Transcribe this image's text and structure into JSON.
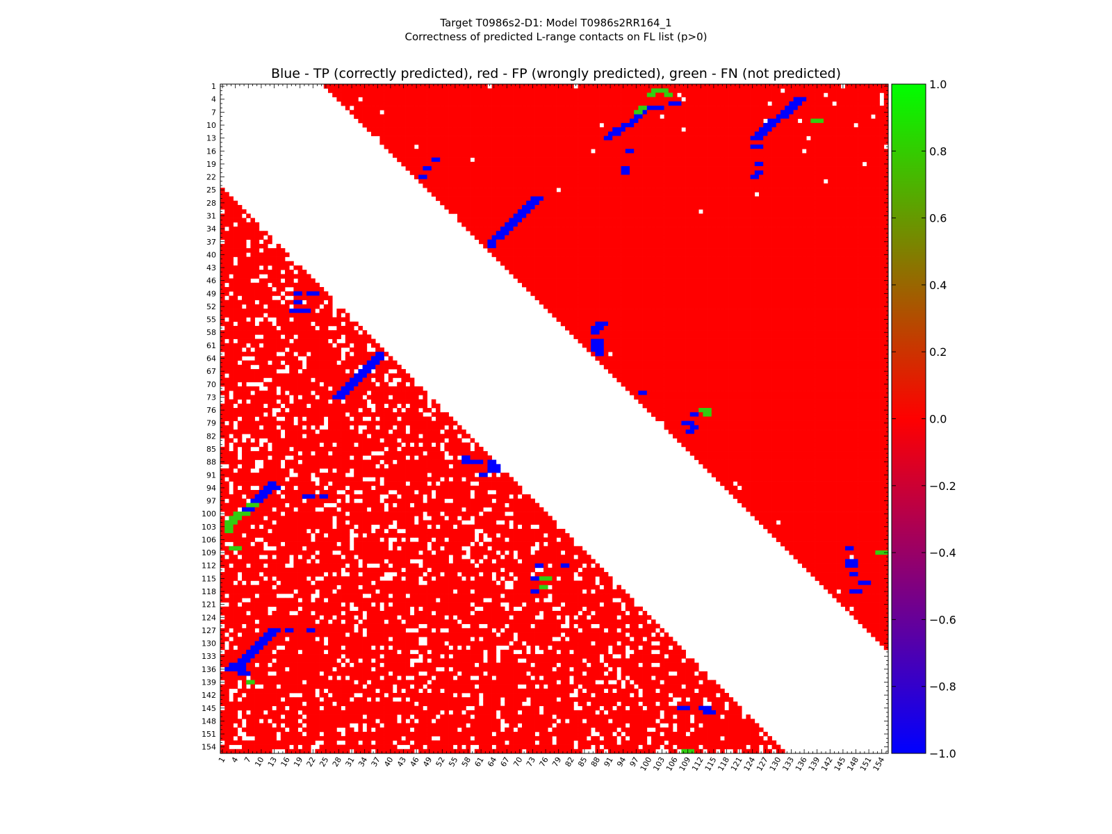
{
  "chart_data": {
    "type": "heatmap",
    "title_line1": "Target T0986s2-D1: Model T0986s2RR164_1",
    "title_line2": "Correctness of predicted L-range contacts on FL list (p>0)",
    "subtitle": "Blue - TP (correctly predicted), red - FP (wrongly predicted), green - FN (not predicted)",
    "n_residues": 155,
    "x_tick_labels": [
      "1",
      "4",
      "7",
      "10",
      "13",
      "16",
      "19",
      "22",
      "25",
      "28",
      "31",
      "34",
      "37",
      "40",
      "43",
      "46",
      "49",
      "52",
      "55",
      "58",
      "61",
      "64",
      "67",
      "70",
      "73",
      "76",
      "79",
      "82",
      "85",
      "88",
      "91",
      "94",
      "97",
      "100",
      "103",
      "106",
      "109",
      "112",
      "115",
      "118",
      "121",
      "124",
      "127",
      "130",
      "133",
      "136",
      "139",
      "142",
      "145",
      "148",
      "151",
      "154"
    ],
    "y_tick_labels": [
      "1",
      "4",
      "7",
      "10",
      "13",
      "16",
      "19",
      "22",
      "25",
      "28",
      "31",
      "34",
      "37",
      "40",
      "43",
      "46",
      "49",
      "52",
      "55",
      "58",
      "61",
      "64",
      "67",
      "70",
      "73",
      "76",
      "79",
      "82",
      "85",
      "88",
      "91",
      "94",
      "97",
      "100",
      "103",
      "106",
      "109",
      "112",
      "115",
      "118",
      "121",
      "124",
      "127",
      "130",
      "133",
      "136",
      "139",
      "142",
      "145",
      "148",
      "151",
      "154"
    ],
    "colorbar": {
      "min": -1.0,
      "max": 1.0,
      "tick_labels": [
        "1.0",
        "0.8",
        "0.6",
        "0.4",
        "0.2",
        "0.0",
        "−0.2",
        "−0.4",
        "−0.6",
        "−0.8",
        "−1.0"
      ],
      "colors": [
        "#0000ff",
        "#ff0000",
        "#00ff00"
      ]
    },
    "colors": {
      "tp": "#0000ff",
      "fp": "#ff0000",
      "fn": "#33cc11"
    },
    "tp_segments": [
      [
        5,
        105,
        107
      ],
      [
        6,
        99,
        100
      ],
      [
        6,
        101,
        103
      ],
      [
        7,
        98,
        99
      ],
      [
        8,
        97,
        98
      ],
      [
        9,
        96,
        97
      ],
      [
        10,
        94,
        96
      ],
      [
        11,
        92,
        94
      ],
      [
        12,
        91,
        93
      ],
      [
        13,
        90,
        91
      ],
      [
        27,
        73,
        75
      ],
      [
        28,
        72,
        74
      ],
      [
        29,
        71,
        73
      ],
      [
        30,
        70,
        72
      ],
      [
        31,
        69,
        71
      ],
      [
        32,
        68,
        70
      ],
      [
        33,
        67,
        69
      ],
      [
        34,
        66,
        68
      ],
      [
        35,
        65,
        67
      ],
      [
        36,
        64,
        66
      ],
      [
        37,
        63,
        64
      ],
      [
        38,
        63,
        64
      ],
      [
        20,
        48,
        49
      ],
      [
        22,
        47,
        48
      ],
      [
        18,
        50,
        51
      ],
      [
        16,
        95,
        96
      ],
      [
        20,
        94,
        95
      ],
      [
        21,
        94,
        95
      ],
      [
        4,
        134,
        136
      ],
      [
        5,
        133,
        135
      ],
      [
        6,
        132,
        134
      ],
      [
        7,
        131,
        133
      ],
      [
        8,
        130,
        132
      ],
      [
        9,
        128,
        130
      ],
      [
        10,
        127,
        129
      ],
      [
        11,
        126,
        128
      ],
      [
        12,
        125,
        127
      ],
      [
        13,
        124,
        126
      ],
      [
        15,
        124,
        126
      ],
      [
        19,
        125,
        126
      ],
      [
        21,
        125,
        126
      ],
      [
        22,
        124,
        125
      ],
      [
        56,
        88,
        90
      ],
      [
        57,
        87,
        89
      ],
      [
        58,
        87,
        88
      ],
      [
        60,
        87,
        89
      ],
      [
        61,
        87,
        89
      ],
      [
        62,
        87,
        89
      ],
      [
        63,
        88,
        89
      ],
      [
        72,
        98,
        99
      ],
      [
        77,
        110,
        111
      ],
      [
        79,
        108,
        110
      ],
      [
        80,
        110,
        111
      ],
      [
        81,
        109,
        110
      ],
      [
        63,
        37,
        38
      ],
      [
        64,
        36,
        38
      ],
      [
        65,
        35,
        37
      ],
      [
        66,
        34,
        36
      ],
      [
        67,
        33,
        35
      ],
      [
        68,
        32,
        34
      ],
      [
        69,
        31,
        33
      ],
      [
        70,
        30,
        32
      ],
      [
        71,
        29,
        31
      ],
      [
        72,
        28,
        30
      ],
      [
        73,
        27,
        29
      ],
      [
        49,
        18,
        19
      ],
      [
        49,
        21,
        23
      ],
      [
        51,
        18,
        19
      ],
      [
        53,
        17,
        19
      ],
      [
        53,
        20,
        21
      ],
      [
        87,
        57,
        58
      ],
      [
        88,
        57,
        61
      ],
      [
        88,
        63,
        65
      ],
      [
        89,
        63,
        65
      ],
      [
        90,
        63,
        65
      ],
      [
        91,
        61,
        62
      ],
      [
        93,
        12,
        13
      ],
      [
        94,
        11,
        14
      ],
      [
        95,
        10,
        12
      ],
      [
        96,
        9,
        11
      ],
      [
        97,
        8,
        10
      ],
      [
        98,
        7,
        9
      ],
      [
        99,
        6,
        8
      ],
      [
        96,
        20,
        22
      ],
      [
        96,
        24,
        25
      ],
      [
        127,
        12,
        14
      ],
      [
        128,
        11,
        13
      ],
      [
        129,
        10,
        12
      ],
      [
        130,
        9,
        11
      ],
      [
        131,
        8,
        10
      ],
      [
        132,
        7,
        9
      ],
      [
        133,
        6,
        8
      ],
      [
        134,
        5,
        7
      ],
      [
        135,
        3,
        6
      ],
      [
        136,
        2,
        6
      ],
      [
        137,
        5,
        7
      ],
      [
        127,
        16,
        17
      ],
      [
        127,
        21,
        22
      ],
      [
        112,
        74,
        75
      ],
      [
        112,
        80,
        81
      ],
      [
        115,
        73,
        74
      ],
      [
        118,
        73,
        74
      ],
      [
        145,
        107,
        109
      ],
      [
        145,
        112,
        114
      ],
      [
        146,
        113,
        115
      ],
      [
        108,
        146,
        147
      ],
      [
        111,
        146,
        148
      ],
      [
        112,
        146,
        148
      ],
      [
        114,
        147,
        148
      ],
      [
        116,
        149,
        151
      ],
      [
        118,
        147,
        149
      ]
    ],
    "fn_segments": [
      [
        2,
        101,
        104
      ],
      [
        3,
        100,
        101
      ],
      [
        3,
        104,
        105
      ],
      [
        6,
        98,
        99
      ],
      [
        7,
        97,
        98
      ],
      [
        9,
        138,
        140
      ],
      [
        76,
        112,
        114
      ],
      [
        77,
        113,
        114
      ],
      [
        98,
        7,
        9
      ],
      [
        100,
        4,
        7
      ],
      [
        101,
        3,
        5
      ],
      [
        102,
        2,
        4
      ],
      [
        103,
        2,
        3
      ],
      [
        104,
        2,
        3
      ],
      [
        108,
        3,
        5
      ],
      [
        115,
        75,
        77
      ],
      [
        117,
        75,
        76
      ],
      [
        109,
        153,
        155
      ],
      [
        139,
        7,
        8
      ],
      [
        155,
        108,
        110
      ]
    ],
    "red_bands": [
      [
        0.64,
        11,
        70
      ],
      [
        0.64,
        9,
        71
      ],
      [
        0.52,
        25,
        58
      ],
      [
        0.48,
        27,
        55
      ],
      [
        0.6,
        12,
        67
      ],
      [
        0.3,
        3,
        42
      ],
      [
        0.38,
        3,
        49
      ],
      [
        0.54,
        40,
        73
      ],
      [
        0.58,
        39,
        75
      ],
      [
        0.5,
        48,
        72
      ],
      [
        0.42,
        56,
        68
      ],
      [
        0.54,
        20,
        78
      ],
      [
        0.47,
        36,
        83
      ],
      [
        0.56,
        28,
        88
      ],
      [
        0.62,
        44,
        93
      ],
      [
        0.65,
        42,
        96
      ],
      [
        0.68,
        50,
        101
      ],
      [
        0.6,
        65,
        110
      ],
      [
        0.5,
        82,
        122
      ],
      [
        0.58,
        60,
        118
      ],
      [
        0.57,
        94,
        131
      ],
      [
        0.53,
        70,
        140
      ],
      [
        0.55,
        112,
        148
      ],
      [
        0.48,
        100,
        150
      ],
      [
        0.36,
        88,
        155
      ],
      [
        0.42,
        98,
        155
      ],
      [
        0.45,
        112,
        155
      ],
      [
        0.33,
        115,
        155
      ],
      [
        0.5,
        131,
        155
      ],
      [
        0.3,
        2,
        20
      ],
      [
        0.55,
        30,
        45
      ],
      [
        0.46,
        123,
        155
      ],
      [
        0.52,
        85,
        128
      ],
      [
        0.6,
        135,
        155
      ]
    ]
  }
}
